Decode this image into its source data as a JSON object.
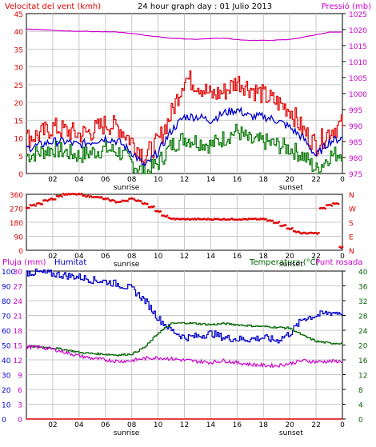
{
  "header": {
    "left_label": "Velocitat del vent (kmh)",
    "center_label": "24 hour graph day : 01 Julio 2013",
    "right_label": "Pressió (mb)"
  },
  "bottom_header": {
    "rain_label": "Pluja (mm)",
    "humidity_label": "Humitat",
    "temp_label": "Temperatura (°C)",
    "dew_label": "Punt rosada"
  },
  "colors": {
    "wind_gust": "#e00000",
    "wind_avg": "#0000cc",
    "wind_low": "#007700",
    "pressure": "#cc00cc",
    "direction": "#e00000",
    "humidity": "#0000cc",
    "temperature": "#006600",
    "dewpoint": "#cc00cc",
    "rain": "#e00000",
    "grid": "#c8c8c8"
  },
  "x_axis": {
    "tick_labels": [
      "02",
      "04",
      "06",
      "08",
      "10",
      "12",
      "14",
      "16",
      "18",
      "20",
      "22",
      "0"
    ],
    "sunrise_label": "sunrise",
    "sunset_label": "sunset",
    "sunrise_hour": 7.6,
    "sunset_hour": 20.1
  },
  "chart_data": [
    {
      "type": "line",
      "name": "wind-chart",
      "y_left": {
        "label": "Velocitat del vent (kmh)",
        "ticks": [
          "45",
          "40",
          "35",
          "30",
          "25",
          "20",
          "15",
          "10",
          "5",
          "0"
        ],
        "range": [
          0,
          45
        ]
      },
      "y_right": {
        "label": "Pressió (mb)",
        "ticks": [
          "1025",
          "1020",
          "1015",
          "1010",
          "1005",
          "1000",
          "995",
          "990",
          "985",
          "980",
          "975"
        ],
        "range": [
          975,
          1025
        ]
      },
      "x_hours": [
        0,
        1,
        2,
        3,
        4,
        5,
        6,
        7,
        8,
        9,
        10,
        11,
        12,
        13,
        14,
        15,
        16,
        17,
        18,
        19,
        20,
        21,
        22,
        23,
        24
      ],
      "series": [
        {
          "role": "gust",
          "values": [
            10,
            11,
            13,
            12,
            11,
            12,
            14,
            13,
            9,
            5,
            9,
            17,
            27,
            25,
            22,
            23,
            26,
            24,
            22,
            20,
            18,
            12,
            8,
            12,
            14
          ]
        },
        {
          "role": "avg",
          "values": [
            7,
            8,
            9,
            9,
            8,
            9,
            10,
            9,
            6,
            2,
            6,
            12,
            16,
            16,
            15,
            17,
            18,
            16,
            16,
            15,
            13,
            10,
            5,
            9,
            10
          ]
        },
        {
          "role": "low",
          "values": [
            5,
            6,
            7,
            6,
            5,
            6,
            7,
            6,
            3,
            0,
            3,
            8,
            10,
            9,
            8,
            10,
            12,
            9,
            9,
            8,
            7,
            5,
            1,
            5,
            6
          ]
        },
        {
          "role": "pressure",
          "values": [
            1020.2,
            1020.0,
            1019.8,
            1019.6,
            1019.5,
            1019.4,
            1019.3,
            1019.2,
            1018.8,
            1018.2,
            1017.8,
            1017.3,
            1017.1,
            1017.0,
            1017.2,
            1017.3,
            1016.9,
            1016.6,
            1016.6,
            1016.7,
            1016.9,
            1017.6,
            1018.4,
            1019.2,
            1019.2
          ]
        }
      ]
    },
    {
      "type": "scatter",
      "name": "wind-direction-chart",
      "y_left": {
        "ticks": [
          "360",
          "270",
          "180",
          "90",
          "0"
        ],
        "range": [
          0,
          360
        ]
      },
      "y_right": {
        "ticks": [
          "N",
          "W",
          "S",
          "E",
          "N"
        ]
      },
      "x_hours": [
        0,
        0.5,
        1,
        1.5,
        2,
        2.5,
        3,
        3.5,
        4,
        4.5,
        5,
        5.5,
        6,
        6.5,
        7,
        7.5,
        8,
        8.5,
        9,
        9.5,
        10,
        10.5,
        11,
        11.5,
        12,
        12.5,
        13,
        13.5,
        14,
        14.5,
        15,
        15.5,
        16,
        16.5,
        17,
        17.5,
        18,
        18.5,
        19,
        19.5,
        20,
        20.5,
        21,
        21.5,
        22,
        22.5,
        23,
        23.5,
        24
      ],
      "values": [
        270,
        290,
        300,
        320,
        330,
        350,
        360,
        360,
        360,
        350,
        345,
        340,
        330,
        320,
        310,
        320,
        330,
        320,
        300,
        280,
        250,
        220,
        205,
        200,
        200,
        200,
        200,
        200,
        200,
        200,
        200,
        200,
        200,
        200,
        200,
        200,
        200,
        190,
        180,
        160,
        140,
        120,
        110,
        110,
        110,
        270,
        290,
        300,
        20
      ]
    },
    {
      "type": "line",
      "name": "humidity-temperature-chart",
      "y_left_rain": {
        "label": "Pluja (mm)",
        "ticks": [
          "30",
          "27",
          "24",
          "21",
          "18",
          "15",
          "12",
          "9",
          "6",
          "3",
          "0"
        ],
        "range": [
          0,
          30
        ]
      },
      "y_left_humidity": {
        "label": "Humitat",
        "ticks": [
          "100",
          "90",
          "80",
          "70",
          "60",
          "50",
          "40",
          "30",
          "20",
          "10",
          "0"
        ],
        "range": [
          0,
          100
        ]
      },
      "y_right_temp": {
        "label": "Temperatura (°C)",
        "ticks": [
          "40",
          "36",
          "32",
          "28",
          "24",
          "20",
          "16",
          "12",
          "8",
          "4",
          "0"
        ],
        "range": [
          0,
          40
        ]
      },
      "x_hours": [
        0,
        1,
        2,
        3,
        4,
        5,
        6,
        7,
        8,
        9,
        10,
        11,
        12,
        13,
        14,
        15,
        16,
        17,
        18,
        19,
        20,
        21,
        22,
        23,
        24
      ],
      "series": [
        {
          "role": "humidity",
          "values": [
            99,
            99,
            98,
            97,
            96,
            94,
            93,
            91,
            88,
            80,
            68,
            60,
            55,
            56,
            58,
            55,
            54,
            54,
            55,
            53,
            58,
            68,
            70,
            72,
            72
          ]
        },
        {
          "role": "temperature",
          "values": [
            19.6,
            19.5,
            19.2,
            18.7,
            18.0,
            17.7,
            17.5,
            17.3,
            17.6,
            19.5,
            23.3,
            25.8,
            26.0,
            25.8,
            25.5,
            25.8,
            25.5,
            25.2,
            25.0,
            24.8,
            24.6,
            22.5,
            21.0,
            20.5,
            20.5
          ]
        },
        {
          "role": "dewpoint",
          "values": [
            19.5,
            19.4,
            18.9,
            18.0,
            17.1,
            16.4,
            16.0,
            15.6,
            15.8,
            16.4,
            16.6,
            16.3,
            15.9,
            15.6,
            15.3,
            15.8,
            15.2,
            14.8,
            14.5,
            14.4,
            15.0,
            15.8,
            15.5,
            15.6,
            15.6
          ]
        },
        {
          "role": "rain",
          "values": [
            0,
            0,
            0,
            0,
            0,
            0,
            0,
            0,
            0,
            0,
            0,
            0,
            0,
            0,
            0,
            0,
            0,
            0,
            0,
            0,
            0,
            0,
            0,
            0,
            0
          ]
        }
      ]
    }
  ]
}
